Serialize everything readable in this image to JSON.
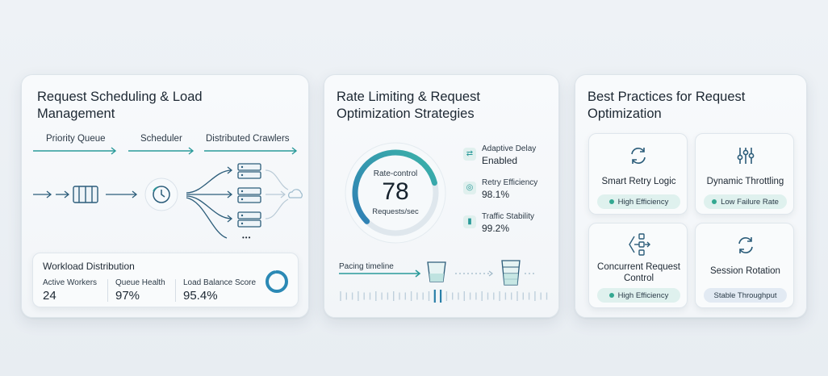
{
  "card1": {
    "title_line1": "Request Scheduling & Load",
    "title_line2": "Management",
    "flow_labels": [
      "Priority Queue",
      "Scheduler",
      "Distributed Crawlers"
    ],
    "more_dots": "•••",
    "workload": {
      "title": "Workload Distribution",
      "stats": [
        {
          "label": "Active Workers",
          "value": "24"
        },
        {
          "label": "Queue Health",
          "value": "97%"
        },
        {
          "label": "Load Balance Score",
          "value": "95.4%"
        }
      ],
      "ring_fraction": 0.954
    }
  },
  "card2": {
    "title_line1": "Rate Limiting & Request",
    "title_line2": "Optimization Strategies",
    "gauge": {
      "label": "Rate-control",
      "value": "78",
      "unit": "Requests/sec",
      "fraction": 0.78
    },
    "metrics": [
      {
        "label": "Adaptive Delay",
        "value": "Enabled",
        "icon": "wave-arrows-icon"
      },
      {
        "label": "Retry Efficiency",
        "value": "98.1%",
        "icon": "target-icon"
      },
      {
        "label": "Traffic Stability",
        "value": "99.2%",
        "icon": "bar-chart-icon"
      }
    ],
    "timeline_label": "Pacing timeline"
  },
  "card3": {
    "title_line1": "Best Practices for Request",
    "title_line2": "Optimization",
    "practices": [
      {
        "title_line1": "Smart Retry Logic",
        "title_line2": "",
        "badge": "High Efficiency",
        "icon": "refresh-icon"
      },
      {
        "title_line1": "Dynamic Throttling",
        "title_line2": "",
        "badge": "Low Failure Rate",
        "icon": "sliders-icon"
      },
      {
        "title_line1": "Concurrent Request",
        "title_line2": "Control",
        "badge": "High Efficiency",
        "icon": "branch-nodes-icon"
      },
      {
        "title_line1": "Session Rotation",
        "title_line2": "",
        "badge": "Stable Throughput",
        "icon": "rotate-icon"
      }
    ]
  },
  "colors": {
    "accent_teal": "#2a9a9a",
    "accent_blue": "#2f7fb5",
    "badge_green": "#33a891"
  }
}
